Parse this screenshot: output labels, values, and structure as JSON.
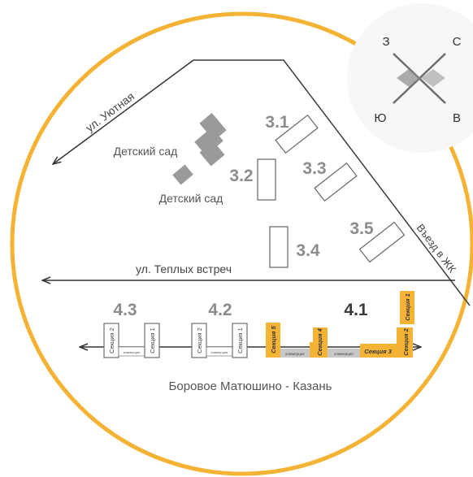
{
  "compass": {
    "west": "З",
    "north": "С",
    "south": "Ю",
    "east": "В"
  },
  "streets": {
    "uyutnaya": "ул. Уютная",
    "teplykh": "ул. Теплых встреч",
    "road": "Боровое Матюшино - Казань",
    "entrance": "Въезд в ЖК"
  },
  "kindergartens": [
    "Детский сад",
    "Детский сад"
  ],
  "buildings": {
    "b31": "3.1",
    "b32": "3.2",
    "b33": "3.3",
    "b34": "3.4",
    "b35": "3.5",
    "b43": "4.3",
    "b42": "4.2",
    "b41": "4.1"
  },
  "sections": {
    "s1": "Секция 1",
    "s2": "Секция 2",
    "s3": "Секция 3",
    "s4": "Секция 4",
    "s5": "Секция 5",
    "commerce": "коммерция"
  },
  "colors": {
    "accent": "#f5b335",
    "line": "#3c3c3c",
    "building_outline": "#6e6e6e",
    "kindergarten": "#9a9a9a",
    "text": "#5a5a5a"
  }
}
